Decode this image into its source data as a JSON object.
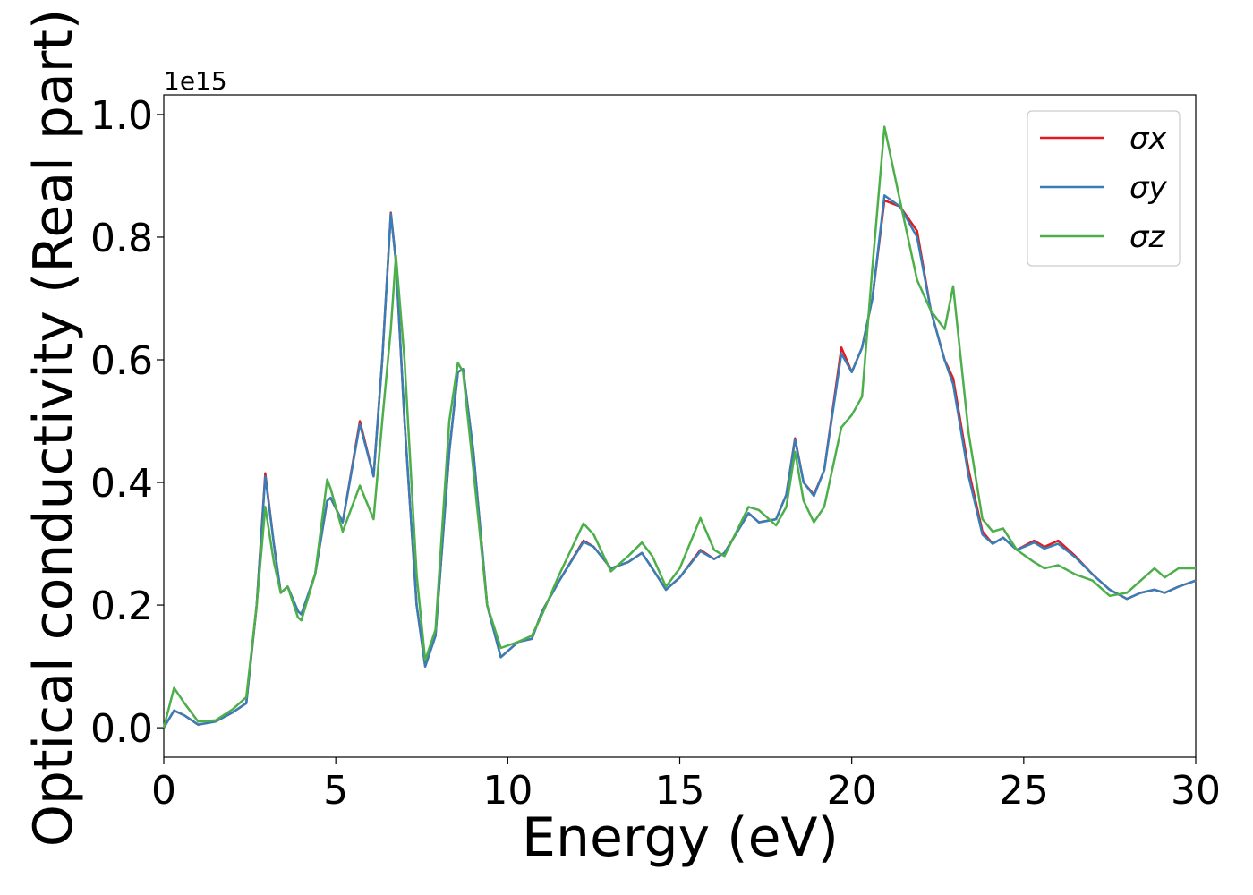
{
  "chart_data": {
    "type": "line",
    "xlabel": "Energy (eV)",
    "ylabel": "Optical conductivity (Real part)",
    "y_offset_label": "1e15",
    "xlim": [
      0,
      30
    ],
    "ylim": [
      -0.048,
      1.032
    ],
    "xticks": [
      0,
      5,
      10,
      15,
      20,
      25,
      30
    ],
    "yticks": [
      {
        "value": 0,
        "label": "0.0"
      },
      0.2,
      0.4,
      0.6,
      0.8,
      {
        "value": 1,
        "label": "1.0"
      }
    ],
    "legend": "upper right",
    "grid": false,
    "x": [
      0,
      0.3,
      0.6,
      1.0,
      1.5,
      2.0,
      2.4,
      2.7,
      2.95,
      3.2,
      3.4,
      3.6,
      3.9,
      4.0,
      4.4,
      4.75,
      4.85,
      5.2,
      5.7,
      6.1,
      6.35,
      6.6,
      6.75,
      7.0,
      7.35,
      7.6,
      7.9,
      8.3,
      8.55,
      8.7,
      9.0,
      9.4,
      9.8,
      10.3,
      10.7,
      11.0,
      11.5,
      12.2,
      12.5,
      13.0,
      13.5,
      13.9,
      14.2,
      14.6,
      15.0,
      15.6,
      16.0,
      16.3,
      17.0,
      17.3,
      17.8,
      18.1,
      18.35,
      18.6,
      18.9,
      19.2,
      19.7,
      20.0,
      20.3,
      20.6,
      20.95,
      21.4,
      21.9,
      22.3,
      22.7,
      22.95,
      23.4,
      23.8,
      24.1,
      24.4,
      24.8,
      25.3,
      25.6,
      26.0,
      26.5,
      27.0,
      27.5,
      28.0,
      28.4,
      28.8,
      29.1,
      29.5,
      30.0
    ],
    "series": [
      {
        "name": "σx",
        "color": "#e41a1c",
        "values": [
          0,
          0.028,
          0.02,
          0.005,
          0.01,
          0.025,
          0.04,
          0.2,
          0.415,
          0.3,
          0.22,
          0.23,
          0.19,
          0.185,
          0.25,
          0.37,
          0.375,
          0.335,
          0.5,
          0.41,
          0.6,
          0.84,
          0.76,
          0.5,
          0.2,
          0.1,
          0.15,
          0.45,
          0.58,
          0.585,
          0.45,
          0.2,
          0.115,
          0.14,
          0.145,
          0.19,
          0.24,
          0.305,
          0.295,
          0.26,
          0.27,
          0.285,
          0.26,
          0.225,
          0.245,
          0.29,
          0.275,
          0.285,
          0.35,
          0.335,
          0.34,
          0.38,
          0.472,
          0.4,
          0.38,
          0.42,
          0.62,
          0.58,
          0.62,
          0.7,
          0.86,
          0.85,
          0.81,
          0.68,
          0.6,
          0.57,
          0.42,
          0.32,
          0.3,
          0.31,
          0.29,
          0.305,
          0.295,
          0.305,
          0.28,
          0.25,
          0.225,
          0.21,
          0.22,
          0.225,
          0.22,
          0.23,
          0.24
        ]
      },
      {
        "name": "σy",
        "color": "#377eb8",
        "values": [
          0,
          0.028,
          0.02,
          0.005,
          0.01,
          0.025,
          0.04,
          0.2,
          0.41,
          0.3,
          0.22,
          0.23,
          0.19,
          0.185,
          0.25,
          0.37,
          0.375,
          0.335,
          0.495,
          0.41,
          0.6,
          0.838,
          0.76,
          0.5,
          0.2,
          0.1,
          0.15,
          0.45,
          0.58,
          0.585,
          0.45,
          0.2,
          0.115,
          0.14,
          0.145,
          0.19,
          0.24,
          0.303,
          0.295,
          0.26,
          0.27,
          0.285,
          0.26,
          0.225,
          0.245,
          0.288,
          0.275,
          0.285,
          0.35,
          0.335,
          0.34,
          0.38,
          0.47,
          0.4,
          0.378,
          0.42,
          0.61,
          0.58,
          0.62,
          0.7,
          0.868,
          0.85,
          0.8,
          0.68,
          0.6,
          0.56,
          0.41,
          0.315,
          0.3,
          0.31,
          0.29,
          0.302,
          0.292,
          0.3,
          0.278,
          0.25,
          0.225,
          0.21,
          0.22,
          0.225,
          0.22,
          0.23,
          0.24
        ]
      },
      {
        "name": "σz",
        "color": "#4daf4a",
        "values": [
          0,
          0.065,
          0.04,
          0.01,
          0.012,
          0.03,
          0.05,
          0.2,
          0.36,
          0.27,
          0.22,
          0.23,
          0.18,
          0.175,
          0.25,
          0.405,
          0.39,
          0.32,
          0.395,
          0.34,
          0.5,
          0.65,
          0.77,
          0.6,
          0.25,
          0.11,
          0.16,
          0.5,
          0.595,
          0.58,
          0.42,
          0.2,
          0.13,
          0.14,
          0.15,
          0.185,
          0.25,
          0.333,
          0.315,
          0.255,
          0.28,
          0.302,
          0.28,
          0.23,
          0.26,
          0.342,
          0.29,
          0.28,
          0.36,
          0.355,
          0.33,
          0.36,
          0.45,
          0.37,
          0.335,
          0.36,
          0.49,
          0.51,
          0.54,
          0.75,
          0.98,
          0.86,
          0.73,
          0.68,
          0.65,
          0.72,
          0.48,
          0.34,
          0.32,
          0.325,
          0.29,
          0.27,
          0.26,
          0.265,
          0.25,
          0.24,
          0.215,
          0.22,
          0.24,
          0.26,
          0.245,
          0.26,
          0.26
        ]
      }
    ]
  }
}
